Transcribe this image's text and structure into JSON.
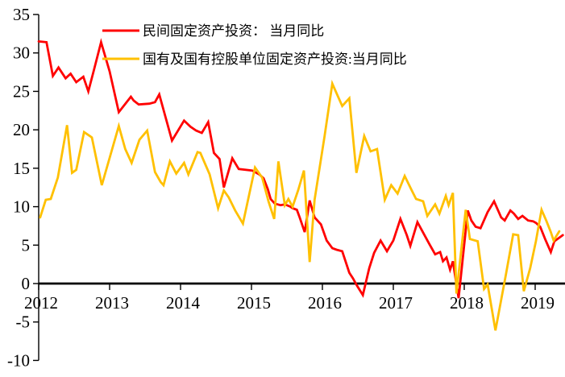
{
  "chart_data": {
    "type": "line",
    "title": "",
    "xlabel": "",
    "ylabel": "",
    "grid": false,
    "background_color": "#ffffff",
    "axis_color": "#000000",
    "legend_position": "top-left-inside",
    "x_axis": {
      "min": 2012,
      "max": 2019.45,
      "ticks": [
        2012,
        2013,
        2014,
        2015,
        2016,
        2017,
        2018,
        2019
      ]
    },
    "y_axis": {
      "min": -10,
      "max": 35,
      "ticks": [
        35,
        30,
        25,
        20,
        15,
        10,
        5,
        0,
        -5,
        -10
      ]
    },
    "series": [
      {
        "name": "民间固定资产投资： 当月同比",
        "color": "#ff0000",
        "points": [
          [
            2012.0,
            31.5
          ],
          [
            2012.11,
            31.4
          ],
          [
            2012.2,
            27.0
          ],
          [
            2012.28,
            28.1
          ],
          [
            2012.38,
            26.7
          ],
          [
            2012.45,
            27.3
          ],
          [
            2012.53,
            26.2
          ],
          [
            2012.63,
            26.9
          ],
          [
            2012.7,
            25.0
          ],
          [
            2012.78,
            27.8
          ],
          [
            2012.88,
            31.4
          ],
          [
            2013.0,
            27.6
          ],
          [
            2013.13,
            22.3
          ],
          [
            2013.3,
            24.3
          ],
          [
            2013.34,
            23.8
          ],
          [
            2013.41,
            23.3
          ],
          [
            2013.56,
            23.4
          ],
          [
            2013.64,
            23.6
          ],
          [
            2013.7,
            24.6
          ],
          [
            2013.88,
            18.6
          ],
          [
            2014.05,
            21.2
          ],
          [
            2014.14,
            20.4
          ],
          [
            2014.22,
            19.9
          ],
          [
            2014.3,
            19.6
          ],
          [
            2014.39,
            21.0
          ],
          [
            2014.47,
            17.0
          ],
          [
            2014.55,
            16.2
          ],
          [
            2014.61,
            12.5
          ],
          [
            2014.73,
            16.3
          ],
          [
            2014.82,
            14.9
          ],
          [
            2015.01,
            14.7
          ],
          [
            2015.11,
            14.2
          ],
          [
            2015.17,
            13.7
          ],
          [
            2015.23,
            12.3
          ],
          [
            2015.27,
            11.0
          ],
          [
            2015.33,
            10.4
          ],
          [
            2015.41,
            10.2
          ],
          [
            2015.47,
            10.3
          ],
          [
            2015.55,
            10.0
          ],
          [
            2015.58,
            9.8
          ],
          [
            2015.64,
            9.6
          ],
          [
            2015.68,
            8.6
          ],
          [
            2015.75,
            6.7
          ],
          [
            2015.82,
            10.8
          ],
          [
            2015.89,
            8.6
          ],
          [
            2015.93,
            8.2
          ],
          [
            2015.98,
            7.7
          ],
          [
            2016.06,
            5.6
          ],
          [
            2016.14,
            4.6
          ],
          [
            2016.2,
            4.4
          ],
          [
            2016.28,
            4.2
          ],
          [
            2016.38,
            1.4
          ],
          [
            2016.43,
            0.7
          ],
          [
            2016.49,
            -0.3
          ],
          [
            2016.57,
            -1.5
          ],
          [
            2016.66,
            2.0
          ],
          [
            2016.73,
            4.0
          ],
          [
            2016.82,
            5.6
          ],
          [
            2016.91,
            4.2
          ],
          [
            2017.0,
            5.6
          ],
          [
            2017.1,
            8.4
          ],
          [
            2017.19,
            6.3
          ],
          [
            2017.24,
            4.9
          ],
          [
            2017.34,
            8.0
          ],
          [
            2017.44,
            6.3
          ],
          [
            2017.51,
            5.1
          ],
          [
            2017.59,
            3.8
          ],
          [
            2017.66,
            4.1
          ],
          [
            2017.7,
            2.9
          ],
          [
            2017.75,
            3.4
          ],
          [
            2017.8,
            1.8
          ],
          [
            2017.84,
            2.9
          ],
          [
            2017.92,
            -1.9
          ],
          [
            2018.05,
            9.5
          ],
          [
            2018.1,
            8.2
          ],
          [
            2018.16,
            7.4
          ],
          [
            2018.23,
            7.2
          ],
          [
            2018.33,
            9.3
          ],
          [
            2018.42,
            10.7
          ],
          [
            2018.52,
            8.6
          ],
          [
            2018.57,
            8.2
          ],
          [
            2018.65,
            9.5
          ],
          [
            2018.7,
            9.1
          ],
          [
            2018.76,
            8.4
          ],
          [
            2018.82,
            8.8
          ],
          [
            2018.9,
            8.2
          ],
          [
            2018.97,
            8.1
          ],
          [
            2019.01,
            7.9
          ],
          [
            2019.07,
            7.4
          ],
          [
            2019.14,
            5.8
          ],
          [
            2019.22,
            4.1
          ],
          [
            2019.27,
            5.5
          ],
          [
            2019.39,
            6.3
          ]
        ]
      },
      {
        "name": "国有及国有控股单位固定资产投资:当月同比",
        "color": "#ffc000",
        "points": [
          [
            2012.02,
            8.6
          ],
          [
            2012.1,
            10.9
          ],
          [
            2012.17,
            11.0
          ],
          [
            2012.27,
            13.8
          ],
          [
            2012.4,
            20.6
          ],
          [
            2012.47,
            14.4
          ],
          [
            2012.53,
            14.8
          ],
          [
            2012.64,
            19.7
          ],
          [
            2012.72,
            19.2
          ],
          [
            2012.75,
            19.0
          ],
          [
            2012.89,
            12.8
          ],
          [
            2013.13,
            20.5
          ],
          [
            2013.22,
            17.5
          ],
          [
            2013.31,
            15.7
          ],
          [
            2013.42,
            18.7
          ],
          [
            2013.53,
            19.9
          ],
          [
            2013.64,
            14.5
          ],
          [
            2013.72,
            13.2
          ],
          [
            2013.76,
            12.8
          ],
          [
            2013.85,
            15.9
          ],
          [
            2013.94,
            14.3
          ],
          [
            2014.05,
            15.7
          ],
          [
            2014.11,
            14.2
          ],
          [
            2014.24,
            17.1
          ],
          [
            2014.28,
            17.0
          ],
          [
            2014.41,
            14.2
          ],
          [
            2014.53,
            9.8
          ],
          [
            2014.61,
            12.1
          ],
          [
            2014.68,
            11.2
          ],
          [
            2014.77,
            9.5
          ],
          [
            2014.88,
            7.8
          ],
          [
            2015.05,
            15.1
          ],
          [
            2015.15,
            13.8
          ],
          [
            2015.24,
            10.7
          ],
          [
            2015.32,
            8.4
          ],
          [
            2015.38,
            15.9
          ],
          [
            2015.47,
            10.2
          ],
          [
            2015.52,
            11.0
          ],
          [
            2015.58,
            10.0
          ],
          [
            2015.66,
            12.2
          ],
          [
            2015.74,
            14.7
          ],
          [
            2015.82,
            2.8
          ],
          [
            2015.89,
            10.9
          ],
          [
            2016.03,
            19.1
          ],
          [
            2016.14,
            26.0
          ],
          [
            2016.28,
            23.1
          ],
          [
            2016.38,
            24.1
          ],
          [
            2016.48,
            14.4
          ],
          [
            2016.59,
            19.2
          ],
          [
            2016.68,
            17.2
          ],
          [
            2016.77,
            17.5
          ],
          [
            2016.88,
            10.9
          ],
          [
            2016.97,
            12.8
          ],
          [
            2017.06,
            11.7
          ],
          [
            2017.16,
            14.0
          ],
          [
            2017.25,
            12.3
          ],
          [
            2017.32,
            11.0
          ],
          [
            2017.42,
            10.7
          ],
          [
            2017.48,
            8.8
          ],
          [
            2017.59,
            10.3
          ],
          [
            2017.65,
            9.1
          ],
          [
            2017.74,
            11.4
          ],
          [
            2017.78,
            10.2
          ],
          [
            2017.84,
            11.8
          ],
          [
            2017.89,
            -1.3
          ],
          [
            2018.02,
            9.6
          ],
          [
            2018.08,
            5.8
          ],
          [
            2018.19,
            5.5
          ],
          [
            2018.28,
            -0.7
          ],
          [
            2018.33,
            -0.1
          ],
          [
            2018.44,
            -6.1
          ],
          [
            2018.59,
            1.3
          ],
          [
            2018.69,
            6.4
          ],
          [
            2018.76,
            6.3
          ],
          [
            2018.84,
            -1.0
          ],
          [
            2018.93,
            2.0
          ],
          [
            2019.01,
            5.5
          ],
          [
            2019.09,
            9.6
          ],
          [
            2019.16,
            8.1
          ],
          [
            2019.22,
            6.7
          ],
          [
            2019.26,
            5.6
          ],
          [
            2019.34,
            6.8
          ]
        ]
      }
    ]
  }
}
